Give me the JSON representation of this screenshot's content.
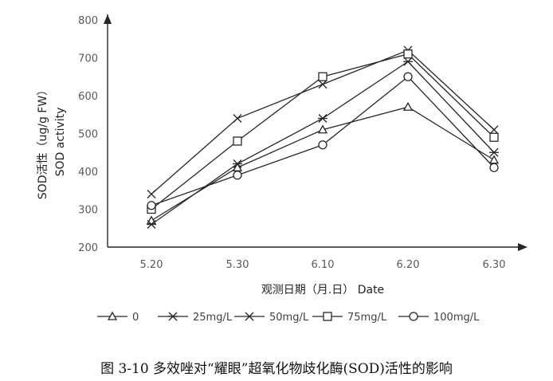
{
  "chart_data": {
    "type": "line",
    "categories": [
      "5.20",
      "5.30",
      "6.10",
      "6.20",
      "6.30"
    ],
    "ylim": [
      200,
      800
    ],
    "yticks": [
      "200",
      "300",
      "400",
      "500",
      "600",
      "700",
      "800"
    ],
    "ylabel": "SOD活性（ug/g FW）",
    "ylabel2": "SOD activity",
    "xlabel": "观测日期（月.日）  Date",
    "grid": false,
    "legend_position": "bottom",
    "series": [
      {
        "name": "0",
        "marker": "triangle",
        "values": [
          270,
          410,
          510,
          570,
          430
        ]
      },
      {
        "name": "25mg/L",
        "marker": "asterisk",
        "values": [
          260,
          420,
          540,
          690,
          450
        ]
      },
      {
        "name": "50mg/L",
        "marker": "x",
        "values": [
          340,
          540,
          630,
          720,
          510
        ]
      },
      {
        "name": "75mg/L",
        "marker": "square",
        "values": [
          300,
          480,
          650,
          710,
          490
        ]
      },
      {
        "name": "100mg/L",
        "marker": "circle",
        "values": [
          310,
          390,
          470,
          650,
          410
        ]
      }
    ],
    "line_color": "#262626"
  },
  "caption": "图 3-10  多效唑对“耀眼”超氧化物歧化酶(SOD)活性的影响"
}
